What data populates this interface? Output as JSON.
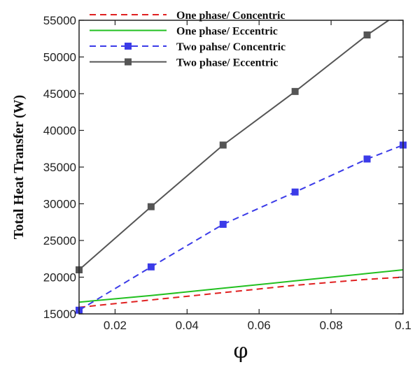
{
  "chart_data": {
    "type": "line",
    "title": "",
    "xlabel": "φ",
    "ylabel": "Total Heat Transfer (W)",
    "xlim": [
      0.01,
      0.1
    ],
    "ylim": [
      15000,
      55000
    ],
    "x_ticks": [
      0.02,
      0.04,
      0.06,
      0.08,
      0.1
    ],
    "x_tick_labels": [
      "0.02",
      "0.04",
      "0.06",
      "0.08",
      "0.1"
    ],
    "y_ticks": [
      15000,
      20000,
      25000,
      30000,
      35000,
      40000,
      45000,
      50000,
      55000
    ],
    "y_tick_labels": [
      "15000",
      "20000",
      "25000",
      "30000",
      "35000",
      "40000",
      "45000",
      "50000",
      "55000"
    ],
    "grid": false,
    "legend_position": "top",
    "series": [
      {
        "name": "One phase/ Concentric",
        "color": "#e02020",
        "line": "dashed",
        "marker": "none",
        "x": [
          0.01,
          0.03,
          0.05,
          0.07,
          0.09,
          0.1
        ],
        "y": [
          15900,
          16900,
          17900,
          18900,
          19700,
          20000
        ]
      },
      {
        "name": "One phase/ Eccentric",
        "color": "#22c020",
        "line": "solid",
        "marker": "none",
        "x": [
          0.01,
          0.03,
          0.05,
          0.07,
          0.09,
          0.1
        ],
        "y": [
          16600,
          17500,
          18500,
          19500,
          20500,
          21000
        ]
      },
      {
        "name": "Two pahse/ Concentric",
        "color": "#3b3be8",
        "line": "dashed",
        "marker": "square",
        "x": [
          0.01,
          0.03,
          0.05,
          0.07,
          0.09,
          0.1
        ],
        "y": [
          15500,
          21400,
          27200,
          31600,
          36100,
          38000
        ]
      },
      {
        "name": "Two phase/ Eccentric",
        "color": "#555555",
        "line": "solid",
        "marker": "square",
        "x": [
          0.01,
          0.03,
          0.05,
          0.07,
          0.09,
          0.096
        ],
        "y": [
          21000,
          29600,
          38000,
          45300,
          53000,
          55000
        ],
        "marker_x": [
          0.01,
          0.03,
          0.05,
          0.07,
          0.09
        ]
      }
    ]
  }
}
